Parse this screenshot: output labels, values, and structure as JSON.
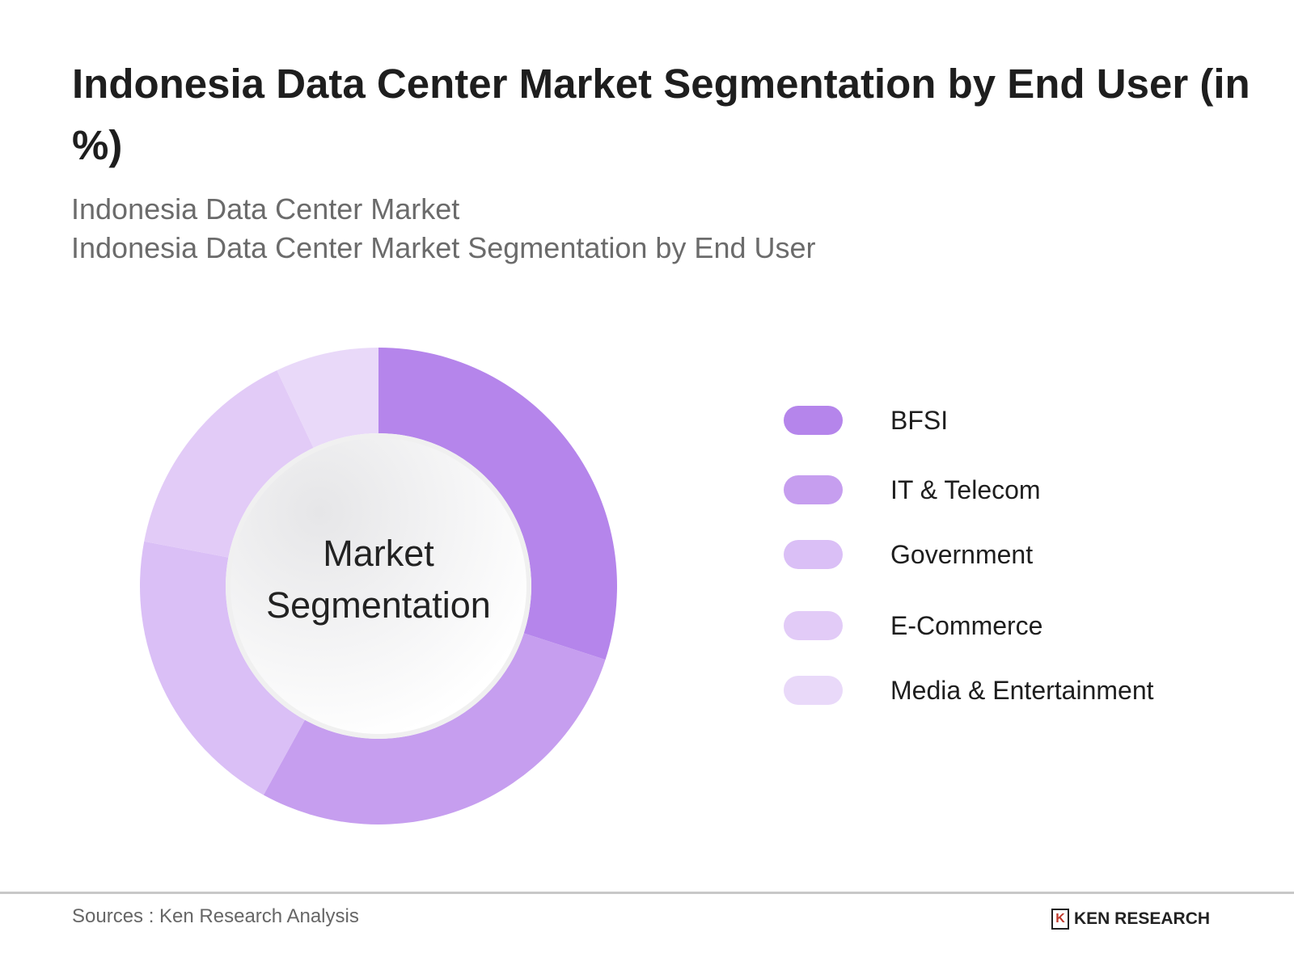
{
  "title": "Indonesia Data Center  Market Segmentation by End User (in %)",
  "subtitle_1": "Indonesia Data Center Market",
  "subtitle_2": "Indonesia Data Center Market Segmentation by End User",
  "chart_data": {
    "type": "pie",
    "variant": "donut",
    "center_label": [
      "Market",
      "Segmentation"
    ],
    "categories": [
      "BFSI",
      "IT & Telecom",
      "Government",
      "E-Commerce",
      "Media & Entertainment"
    ],
    "values": [
      30,
      28,
      20,
      15,
      7
    ],
    "unit": "%",
    "colors": [
      "#b585eb",
      "#c69eef",
      "#dabff6",
      "#e2cbf7",
      "#e9d9f9"
    ],
    "legend_placement": "right"
  },
  "footer": {
    "source": "Sources : Ken Research Analysis",
    "logo_text": "KEN RESEARCH"
  }
}
